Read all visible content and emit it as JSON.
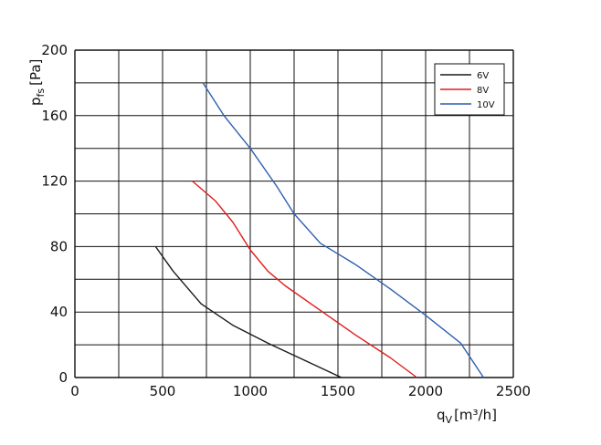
{
  "chart_data": {
    "type": "line",
    "ylabel": "p",
    "ylabel_sub": "fs",
    "ylabel_unit": "[Pa]",
    "xlabel": "q",
    "xlabel_sub": "V",
    "xlabel_unit": "[m³/h]",
    "xlim": [
      0,
      2500
    ],
    "ylim": [
      0,
      200
    ],
    "x_ticks": [
      0,
      500,
      1000,
      1500,
      2000,
      2500
    ],
    "y_ticks": [
      0,
      40,
      80,
      120,
      160,
      200
    ],
    "x_tick_labels": [
      "0",
      "500",
      "1000",
      "1500",
      "2000",
      "2500"
    ],
    "y_tick_labels": [
      "0",
      "40",
      "80",
      "120",
      "160",
      "200"
    ],
    "x_gridlines": [
      0,
      250,
      500,
      750,
      1000,
      1250,
      1500,
      1750,
      2000,
      2250,
      2500
    ],
    "y_gridlines": [
      0,
      20,
      40,
      60,
      80,
      100,
      120,
      140,
      160,
      180,
      200
    ],
    "grid": true,
    "legend_position": "top-right",
    "series": [
      {
        "name": "6V",
        "color": "#1a1a1a",
        "points": [
          [
            460,
            80
          ],
          [
            560,
            65
          ],
          [
            720,
            45
          ],
          [
            900,
            32
          ],
          [
            1100,
            21
          ],
          [
            1300,
            11
          ],
          [
            1520,
            0
          ]
        ]
      },
      {
        "name": "8V",
        "color": "#e01b1b",
        "points": [
          [
            670,
            120
          ],
          [
            800,
            108
          ],
          [
            900,
            95
          ],
          [
            1000,
            78
          ],
          [
            1100,
            65
          ],
          [
            1200,
            56
          ],
          [
            1400,
            41
          ],
          [
            1600,
            26
          ],
          [
            1800,
            12
          ],
          [
            1950,
            0
          ]
        ]
      },
      {
        "name": "10V",
        "color": "#2f5fb0",
        "points": [
          [
            730,
            180
          ],
          [
            850,
            160
          ],
          [
            1000,
            140
          ],
          [
            1150,
            117
          ],
          [
            1250,
            100
          ],
          [
            1400,
            82
          ],
          [
            1600,
            69
          ],
          [
            1800,
            54
          ],
          [
            2000,
            38
          ],
          [
            2200,
            21
          ],
          [
            2330,
            0
          ]
        ]
      }
    ]
  }
}
